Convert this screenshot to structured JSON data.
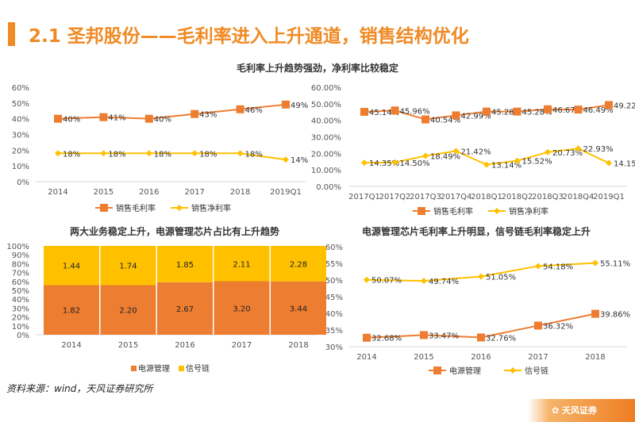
{
  "title": "2.1 圣邦股份——毛利率进入上升通道，销售结构优化",
  "source": "资料来源：wind，天风证券研究所",
  "logo_text": "天风证券",
  "colors": {
    "orange": "#ed7d31",
    "yellow": "#ffc000",
    "accent": "#f08a24"
  },
  "chart_data": [
    {
      "type": "line",
      "title": "毛利率上升趋势强劲，净利率比较稳定",
      "categories": [
        "2014",
        "2015",
        "2016",
        "2017",
        "2018",
        "2019Q1"
      ],
      "ylim": [
        0,
        60
      ],
      "yticks": [
        "0%",
        "10%",
        "20%",
        "30%",
        "40%",
        "50%",
        "60%"
      ],
      "series": [
        {
          "name": "销售毛利率",
          "values": [
            40,
            41,
            40,
            43,
            46,
            49
          ],
          "labels": [
            "40%",
            "41%",
            "40%",
            "43%",
            "46%",
            "49%"
          ],
          "marker": "square"
        },
        {
          "name": "销售净利率",
          "values": [
            18,
            18,
            18,
            18,
            18,
            14
          ],
          "labels": [
            "18%",
            "18%",
            "18%",
            "18%",
            "18%",
            "14%"
          ],
          "marker": "diamond"
        }
      ]
    },
    {
      "type": "line",
      "categories": [
        "2017Q1",
        "2017Q2",
        "2017Q3",
        "2017Q4",
        "2018Q1",
        "2018Q2",
        "2018Q3",
        "2018Q4",
        "2019Q1"
      ],
      "ylim": [
        0,
        60
      ],
      "yticks": [
        "0.00%",
        "10.00%",
        "20.00%",
        "30.00%",
        "40.00%",
        "50.00%",
        "60.00%"
      ],
      "series": [
        {
          "name": "销售毛利率",
          "values": [
            45.14,
            45.96,
            40.54,
            42.99,
            45.28,
            45.28,
            46.67,
            46.49,
            49.22
          ],
          "labels": [
            "45.14%",
            "45.96%",
            "40.54%",
            "42.99%",
            "45.28%",
            "45.28%",
            "46.67%",
            "46.49%",
            "49.22%"
          ],
          "marker": "square"
        },
        {
          "name": "销售净利率",
          "values": [
            14.35,
            14.5,
            18.49,
            21.42,
            13.14,
            15.52,
            20.73,
            22.93,
            14.15
          ],
          "labels": [
            "14.35%",
            "14.50%",
            "18.49%",
            "21.42%",
            "13.14%",
            "15.52%",
            "20.73%",
            "22.93%",
            "14.15%"
          ],
          "marker": "diamond"
        }
      ]
    },
    {
      "type": "bar",
      "stacked": "percent",
      "title": "两大业务稳定上升，电源管理芯片占比有上升趋势",
      "categories": [
        "2014",
        "2015",
        "2016",
        "2017",
        "2018"
      ],
      "ylim": [
        0,
        100
      ],
      "yticks": [
        "0%",
        "10%",
        "20%",
        "30%",
        "40%",
        "50%",
        "60%",
        "70%",
        "80%",
        "90%",
        "100%"
      ],
      "series": [
        {
          "name": "电源管理",
          "values": [
            1.82,
            2.2,
            2.67,
            3.2,
            3.44
          ],
          "labels": [
            "1.82",
            "2.20",
            "2.67",
            "3.20",
            "3.44"
          ]
        },
        {
          "name": "信号链",
          "values": [
            1.44,
            1.74,
            1.85,
            2.11,
            2.28
          ],
          "labels": [
            "1.44",
            "1.74",
            "1.85",
            "2.11",
            "2.28"
          ]
        }
      ]
    },
    {
      "type": "line",
      "title": "电源管理芯片毛利率上升明显，信号链毛利率稳定上升",
      "categories": [
        "2014",
        "2015",
        "2016",
        "2017",
        "2018"
      ],
      "ylim": [
        30,
        60
      ],
      "yticks": [
        "30%",
        "35%",
        "40%",
        "45%",
        "50%",
        "55%",
        "60%"
      ],
      "series": [
        {
          "name": "电源管理",
          "values": [
            32.68,
            33.47,
            32.76,
            36.32,
            39.86
          ],
          "labels": [
            "32.68%",
            "33.47%",
            "32.76%",
            "36.32%",
            "39.86%"
          ],
          "marker": "square"
        },
        {
          "name": "信号链",
          "values": [
            50.07,
            49.74,
            51.05,
            54.18,
            55.11
          ],
          "labels": [
            "50.07%",
            "49.74%",
            "51.05%",
            "54.18%",
            "55.11%"
          ],
          "marker": "diamond"
        }
      ]
    }
  ]
}
